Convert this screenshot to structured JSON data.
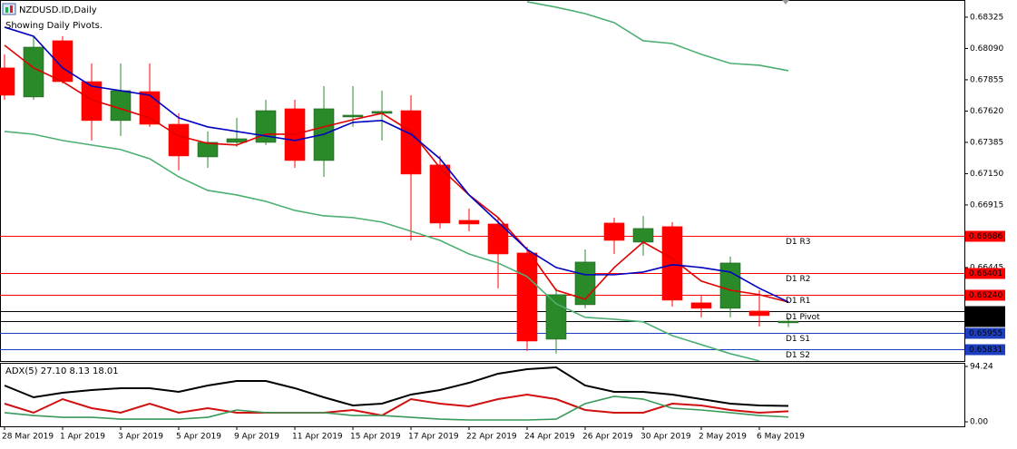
{
  "chart_data": [
    {
      "type": "candlestick",
      "title": "NZDUSD.ID,Daily",
      "subtitle": "Showing Daily Pivots.",
      "categories": [
        "28 Mar 2019",
        null,
        "1 Apr 2019",
        null,
        "3 Apr 2019",
        null,
        "5 Apr 2019",
        null,
        "9 Apr 2019",
        null,
        "11 Apr 2019",
        null,
        "15 Apr 2019",
        null,
        "17 Apr 2019",
        null,
        "22 Apr 2019",
        null,
        "24 Apr 2019",
        null,
        "26 Apr 2019",
        null,
        "30 Apr 2019",
        null,
        "2 May 2019",
        null,
        "6 May 2019",
        null
      ],
      "open": [
        0.67944,
        0.67726,
        0.68148,
        0.67841,
        0.67549,
        0.67766,
        0.67521,
        0.67276,
        0.67385,
        0.67385,
        0.67637,
        0.67249,
        0.67576,
        0.67603,
        0.67623,
        0.67215,
        0.66799,
        0.66772,
        0.66554,
        0.65907,
        0.66166,
        0.66779,
        0.66636,
        0.66752,
        0.6618,
        0.66139,
        0.66118,
        0.6603
      ],
      "high": [
        0.68046,
        0.68182,
        0.68182,
        0.67978,
        0.67978,
        0.67978,
        0.67603,
        0.67467,
        0.67569,
        0.67705,
        0.67705,
        0.67807,
        0.67807,
        0.67773,
        0.67739,
        0.67283,
        0.66888,
        0.6682,
        0.66602,
        0.66289,
        0.66581,
        0.6682,
        0.66833,
        0.66786,
        0.66241,
        0.66527,
        0.66275,
        0.66071
      ],
      "low": [
        0.67705,
        0.67705,
        0.67828,
        0.67399,
        0.67433,
        0.67501,
        0.67174,
        0.67194,
        0.67351,
        0.67365,
        0.67194,
        0.67126,
        0.67501,
        0.67399,
        0.66649,
        0.66738,
        0.66718,
        0.66289,
        0.65819,
        0.65798,
        0.66139,
        0.66547,
        0.66534,
        0.66152,
        0.66071,
        0.66071,
        0.66002,
        0.65998
      ],
      "close": [
        0.67739,
        0.681,
        0.67841,
        0.67549,
        0.67773,
        0.67521,
        0.67283,
        0.67385,
        0.67412,
        0.67623,
        0.67249,
        0.67637,
        0.67589,
        0.67617,
        0.67147,
        0.66779,
        0.66772,
        0.66547,
        0.65893,
        0.66241,
        0.66486,
        0.66649,
        0.66738,
        0.662,
        0.66139,
        0.66479,
        0.66084,
        0.66042
      ],
      "up_color": "#2a8a2a",
      "down_color": "#ff0000",
      "series": [
        {
          "color": "#e00000",
          "values": [
            0.68114,
            0.67944,
            0.67841,
            0.67705,
            0.67637,
            0.67569,
            0.67433,
            0.67378,
            0.67365,
            0.67446,
            0.67446,
            0.67501,
            0.67555,
            0.67603,
            0.67467,
            0.67194,
            0.6699,
            0.6682,
            0.66581,
            0.66275,
            0.66207,
            0.66445,
            0.66636,
            0.66513,
            0.66343,
            0.66275,
            0.66241,
            0.66186
          ]
        },
        {
          "color": "#0000c0",
          "values": [
            0.6825,
            0.68182,
            0.67944,
            0.67807,
            0.67773,
            0.67739,
            0.67569,
            0.67501,
            0.67467,
            0.67433,
            0.67399,
            0.67446,
            0.67535,
            0.67549,
            0.67446,
            0.67262,
            0.6699,
            0.66786,
            0.66581,
            0.66445,
            0.66391,
            0.66391,
            0.66411,
            0.66466,
            0.66445,
            0.66411,
            0.66289,
            0.66186
          ]
        },
        {
          "color": "#4caf72",
          "values": [
            null,
            null,
            null,
            null,
            null,
            null,
            null,
            null,
            null,
            null,
            null,
            null,
            null,
            null,
            null,
            null,
            null,
            null,
            0.68441,
            0.684,
            0.68352,
            0.68284,
            0.68148,
            0.68127,
            0.68046,
            0.67978,
            0.67964,
            0.67923
          ]
        },
        {
          "color": "#4caf72",
          "values": [
            0.67467,
            0.67446,
            0.67399,
            0.67365,
            0.67331,
            0.67262,
            0.67126,
            0.67024,
            0.6699,
            0.66942,
            0.66874,
            0.66833,
            0.6682,
            0.66786,
            0.66718,
            0.66649,
            0.66547,
            0.66479,
            0.66377,
            0.66173,
            0.66071,
            0.66057,
            0.66037,
            0.65934,
            0.65866,
            0.65798,
            0.65744,
            null
          ]
        }
      ],
      "levels": [
        {
          "name": "D1 R3",
          "value": 0.66686,
          "value_label": "0.66686",
          "color": "#ff0000"
        },
        {
          "name": "D1 R2",
          "value": 0.66401,
          "value_label": "0.66401",
          "color": "#ff0000"
        },
        {
          "name": "D1 R1",
          "value": 0.6624,
          "value_label": "0.66240",
          "color": "#ff0000"
        },
        {
          "name": "D1 Pivot",
          "value": 0.66116,
          "value_label": "0.66116",
          "color": "#000000"
        },
        {
          "name": "D1 S1",
          "value": 0.65955,
          "value_label": "0.65955",
          "color": "#1c3fc0"
        },
        {
          "name": "D1 S2",
          "value": 0.65831,
          "value_label": "0.65831",
          "color": "#1c3fc0"
        }
      ],
      "last_price": 0.66042,
      "ylim": [
        0.65743,
        0.68454
      ],
      "yticks": [
        {
          "value": 0.68325,
          "label": "0.68325"
        },
        {
          "value": 0.6809,
          "label": "0.68090"
        },
        {
          "value": 0.67855,
          "label": "0.67855"
        },
        {
          "value": 0.6762,
          "label": "0.67620"
        },
        {
          "value": 0.67385,
          "label": "0.67385"
        },
        {
          "value": 0.6715,
          "label": "0.67150"
        },
        {
          "value": 0.66915,
          "label": "0.66915"
        },
        {
          "value": 0.66445,
          "label": "0.66445"
        }
      ]
    },
    {
      "type": "line",
      "title": "ADX(5) 27.10 8.13 18.01",
      "series": [
        {
          "color": "#000000",
          "values": [
            61.8,
            41.7,
            49.4,
            54.1,
            57.2,
            57.2,
            51.0,
            61.8,
            69.5,
            69.5,
            57.2,
            41.7,
            27.8,
            30.9,
            46.4,
            54.1,
            66.4,
            81.9,
            89.6,
            92.7,
            61.8,
            51.0,
            51.0,
            46.4,
            38.6,
            30.9,
            27.8,
            27.1
          ]
        },
        {
          "color": "#d01010",
          "values": [
            30.9,
            15.5,
            38.6,
            23.2,
            15.5,
            30.9,
            15.5,
            23.2,
            15.5,
            15.5,
            15.5,
            15.5,
            20.1,
            10.8,
            38.6,
            30.9,
            26.3,
            38.6,
            46.4,
            38.6,
            20.1,
            15.5,
            15.5,
            30.9,
            27.8,
            20.1,
            15.5,
            18.01
          ]
        },
        {
          "color": "#3a9a5a",
          "values": [
            15.5,
            10.8,
            7.7,
            7.7,
            4.6,
            4.6,
            4.6,
            7.7,
            20.1,
            15.5,
            15.5,
            15.5,
            10.8,
            10.8,
            7.7,
            4.6,
            3.1,
            3.1,
            3.1,
            4.6,
            30.9,
            43.3,
            38.6,
            23.2,
            20.1,
            15.5,
            10.8,
            8.13
          ]
        }
      ],
      "ylim": [
        -7.7,
        100.4
      ],
      "yticks": [
        94.24,
        {
          "value": 0,
          "label": "0.00"
        }
      ]
    }
  ]
}
